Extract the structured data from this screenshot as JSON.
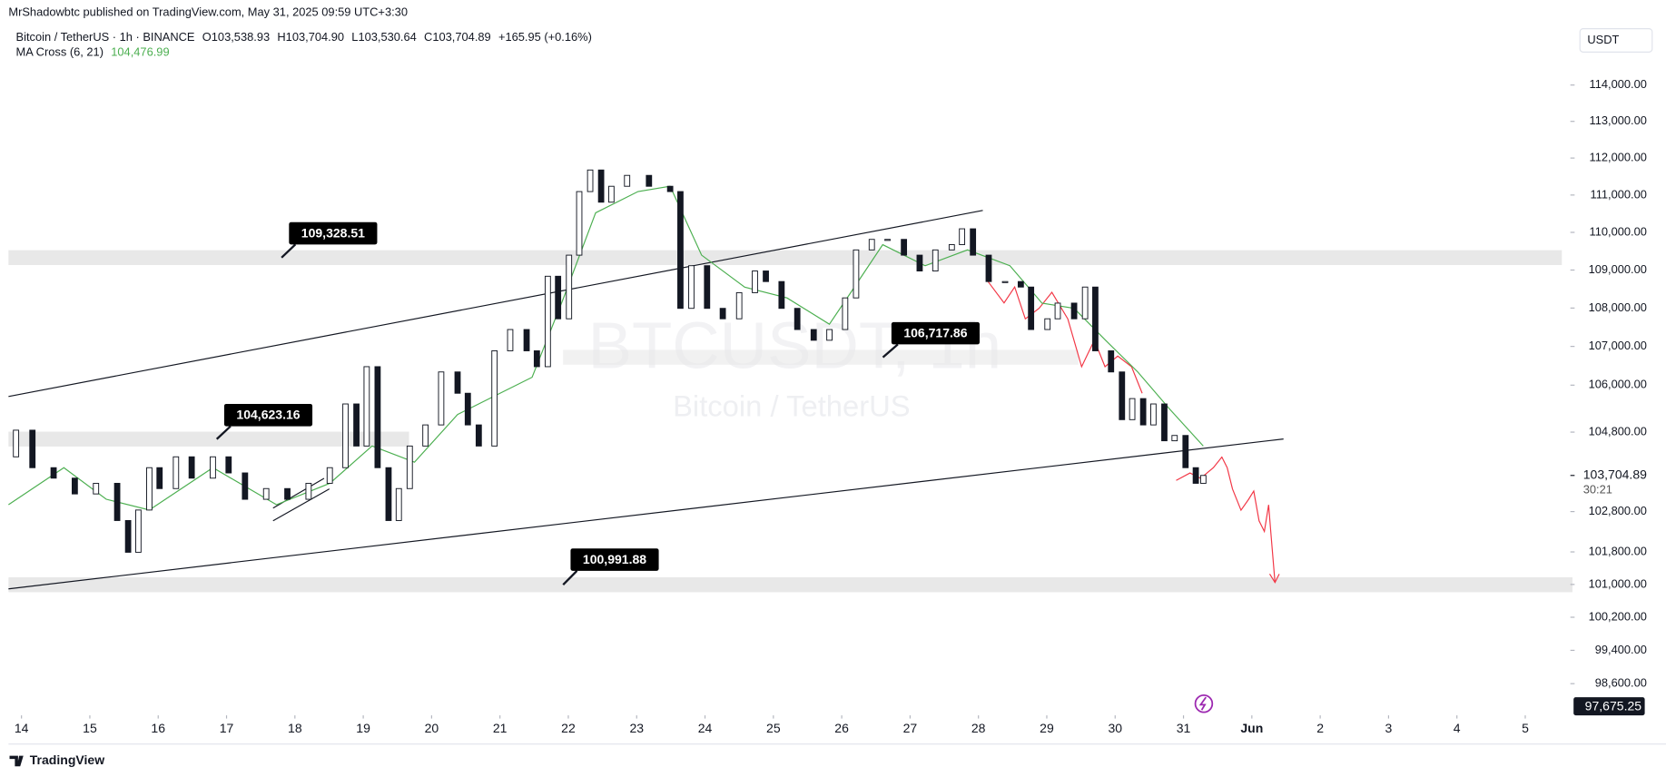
{
  "header": {
    "publisher": "MrShadowbtc published on TradingView.com, May 31, 2025 09:59 UTC+3:30",
    "symbol": "Bitcoin / TetherUS · 1h · BINANCE",
    "ohlc": [
      {
        "label": "O",
        "value": "103,538.93"
      },
      {
        "label": "H",
        "value": "103,704.90"
      },
      {
        "label": "L",
        "value": "103,530.64"
      },
      {
        "label": "C",
        "value": "103,704.89"
      }
    ],
    "change": "+165.95 (+0.16%)",
    "currency": "USDT",
    "watermark": "BTCUSDT, 1h",
    "watermark_sub": "Bitcoin / TetherUS",
    "brand": "TradingView"
  },
  "chart_data": {
    "type": "candlestick",
    "x": [
      13.81,
      13.92,
      14.16,
      14.47,
      14.78,
      15.09,
      15.4,
      15.56,
      15.71,
      15.87,
      16.02,
      16.26,
      16.49,
      16.8,
      17.03,
      17.27,
      17.58,
      17.89,
      18.2,
      18.51,
      18.74,
      18.9,
      19.05,
      19.21,
      19.37,
      19.52,
      19.68,
      19.91,
      20.14,
      20.38,
      20.53,
      20.69,
      20.92,
      21.15,
      21.39,
      21.54,
      21.7,
      21.85,
      22.01,
      22.16,
      22.32,
      22.48,
      22.63,
      22.86,
      23.18,
      23.49,
      23.64,
      23.8,
      24.03,
      24.26,
      24.5,
      24.73,
      24.89,
      25.12,
      25.35,
      25.59,
      25.82,
      26.05,
      26.21,
      26.44,
      26.67,
      26.91,
      27.14,
      27.37,
      27.61,
      27.76,
      27.92,
      28.15,
      28.39,
      28.62,
      28.77,
      29.01,
      29.16,
      29.4,
      29.56,
      29.71,
      29.94,
      30.1,
      30.25,
      30.41,
      30.56,
      30.72,
      30.87,
      31.03,
      31.18,
      31.29
    ],
    "values": [
      104174,
      104849,
      103900,
      103637,
      103241,
      103507,
      102577,
      101791,
      102839,
      103900,
      103375,
      104174,
      103637,
      104174,
      103768,
      103107,
      103375,
      103107,
      103507,
      103900,
      105518,
      104447,
      106476,
      103900,
      102577,
      103375,
      104447,
      104983,
      106340,
      105792,
      104983,
      104447,
      106886,
      107439,
      106886,
      106476,
      108836,
      107719,
      109394,
      111093,
      111676,
      110808,
      111236,
      111530,
      111236,
      111093,
      107992,
      109115,
      107992,
      107719,
      108403,
      108975,
      108696,
      107992,
      107439,
      107160,
      107439,
      108266,
      109533,
      109813,
      109813,
      109394,
      108975,
      109533,
      109673,
      110095,
      109394,
      108696,
      108696,
      108551,
      107439,
      107719,
      108129,
      107719,
      108551,
      106886,
      106340,
      105117,
      105655,
      104983,
      105518,
      104580,
      104715,
      103900,
      103507,
      103705
    ],
    "indicator": {
      "name": "MA Cross (6, 21)",
      "value": "104,476.99",
      "color": "#4caf50",
      "x": [
        13.81,
        14.62,
        15.24,
        15.87,
        16.8,
        17.73,
        18.51,
        19.13,
        19.75,
        20.38,
        21.0,
        21.47,
        21.93,
        22.4,
        23.02,
        23.49,
        23.95,
        24.58,
        25.2,
        25.82,
        26.13,
        26.6,
        27.22,
        27.84,
        28.46,
        28.93,
        29.4,
        29.86,
        30.33,
        30.8,
        31.29
      ],
      "values": [
        102973,
        103900,
        103107,
        102839,
        103900,
        102973,
        103507,
        104447,
        104040,
        105250,
        105792,
        106203,
        108266,
        110523,
        111093,
        111236,
        109394,
        108551,
        108266,
        107579,
        108403,
        109673,
        109115,
        109533,
        109115,
        108129,
        107992,
        107160,
        106340,
        105384,
        104447
      ]
    },
    "xlim": [
      13.81,
      36.66
    ],
    "xticks": [
      14,
      15,
      16,
      17,
      18,
      19,
      20,
      21,
      22,
      23,
      24,
      25,
      26,
      27,
      28,
      29,
      30,
      31,
      {
        "value": 32,
        "label": "Jun"
      },
      {
        "value": 33,
        "label": "2"
      },
      {
        "value": 34,
        "label": "3"
      },
      {
        "value": 35,
        "label": "4"
      },
      {
        "value": 36,
        "label": "5"
      }
    ],
    "ylim": [
      97845,
      115538
    ],
    "log_scale": true,
    "yticks": [
      {
        "value": 114000,
        "label": "114,000.00"
      },
      {
        "value": 113000,
        "label": "113,000.00"
      },
      {
        "value": 112000,
        "label": "112,000.00"
      },
      {
        "value": 111000,
        "label": "111,000.00"
      },
      {
        "value": 110000,
        "label": "110,000.00"
      },
      {
        "value": 109000,
        "label": "109,000.00"
      },
      {
        "value": 108000,
        "label": "108,000.00"
      },
      {
        "value": 107000,
        "label": "107,000.00"
      },
      {
        "value": 106000,
        "label": "106,000.00"
      },
      {
        "value": 104800,
        "label": "104,800.00"
      },
      {
        "value": 102800,
        "label": "102,800.00"
      },
      {
        "value": 101800,
        "label": "101,800.00"
      },
      {
        "value": 101000,
        "label": "101,000.00"
      },
      {
        "value": 100200,
        "label": "100,200.00"
      },
      {
        "value": 99400,
        "label": "99,400.00"
      },
      {
        "value": 98600,
        "label": "98,600.00"
      }
    ],
    "last_price": {
      "value": 103704.89,
      "label": "103,704.89",
      "countdown": "30:21"
    },
    "cursor_price": {
      "value": 97675.25,
      "label": "97,675.25"
    },
    "annotations": [
      {
        "value": 109328.51,
        "label": "109,328.51"
      },
      {
        "value": 104623.16,
        "label": "104,623.16"
      },
      {
        "value": 106717.86,
        "label": "106,717.86"
      },
      {
        "value": 100991.88,
        "label": "100,991.88"
      }
    ]
  }
}
